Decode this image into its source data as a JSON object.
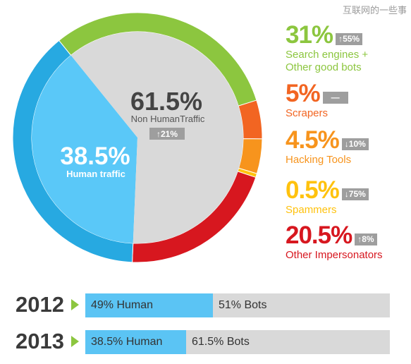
{
  "watermark": "互联网的一些事",
  "chart_data": {
    "type": "pie",
    "center": {
      "nonhuman_value": "61.5%",
      "nonhuman_label": "Non HumanTraffic",
      "nonhuman_change": "↑21%",
      "human_value": "38.5%",
      "human_label": "Human traffic"
    },
    "inner": [
      {
        "name": "Human traffic",
        "value": 38.5,
        "color": "#5ac8f8"
      },
      {
        "name": "Non HumanTraffic",
        "value": 61.5,
        "color": "#d9d9d9"
      }
    ],
    "outer": [
      {
        "name": "Search engines + Other good bots",
        "value": 31,
        "color": "#8cc63f"
      },
      {
        "name": "Scrapers",
        "value": 5,
        "color": "#f26522"
      },
      {
        "name": "Hacking Tools",
        "value": 4.5,
        "color": "#f7941d"
      },
      {
        "name": "Spammers",
        "value": 0.5,
        "color": "#ffc20e"
      },
      {
        "name": "Other Impersonators",
        "value": 20.5,
        "color": "#d7171f"
      },
      {
        "name": "Human traffic",
        "value": 38.5,
        "color": "#27a9e1"
      }
    ],
    "legend": [
      {
        "pct": "31%",
        "change": "↑55%",
        "label": "Search engines +\nOther good bots",
        "color": "#8cc63f"
      },
      {
        "pct": "5%",
        "change": "—",
        "label": "Scrapers",
        "color": "#f26522"
      },
      {
        "pct": "4.5%",
        "change": "↓10%",
        "label": "Hacking Tools",
        "color": "#f7941d"
      },
      {
        "pct": "0.5%",
        "change": "↓75%",
        "label": "Spammers",
        "color": "#ffc20e"
      },
      {
        "pct": "20.5%",
        "change": "↑8%",
        "label": "Other Impersonators",
        "color": "#d7171f"
      }
    ],
    "bars": [
      {
        "year": "2012",
        "human": 49,
        "human_label": "49% Human",
        "bots_label": "51% Bots"
      },
      {
        "year": "2013",
        "human": 38.5,
        "human_label": "38.5% Human",
        "bots_label": "61.5% Bots"
      }
    ]
  }
}
